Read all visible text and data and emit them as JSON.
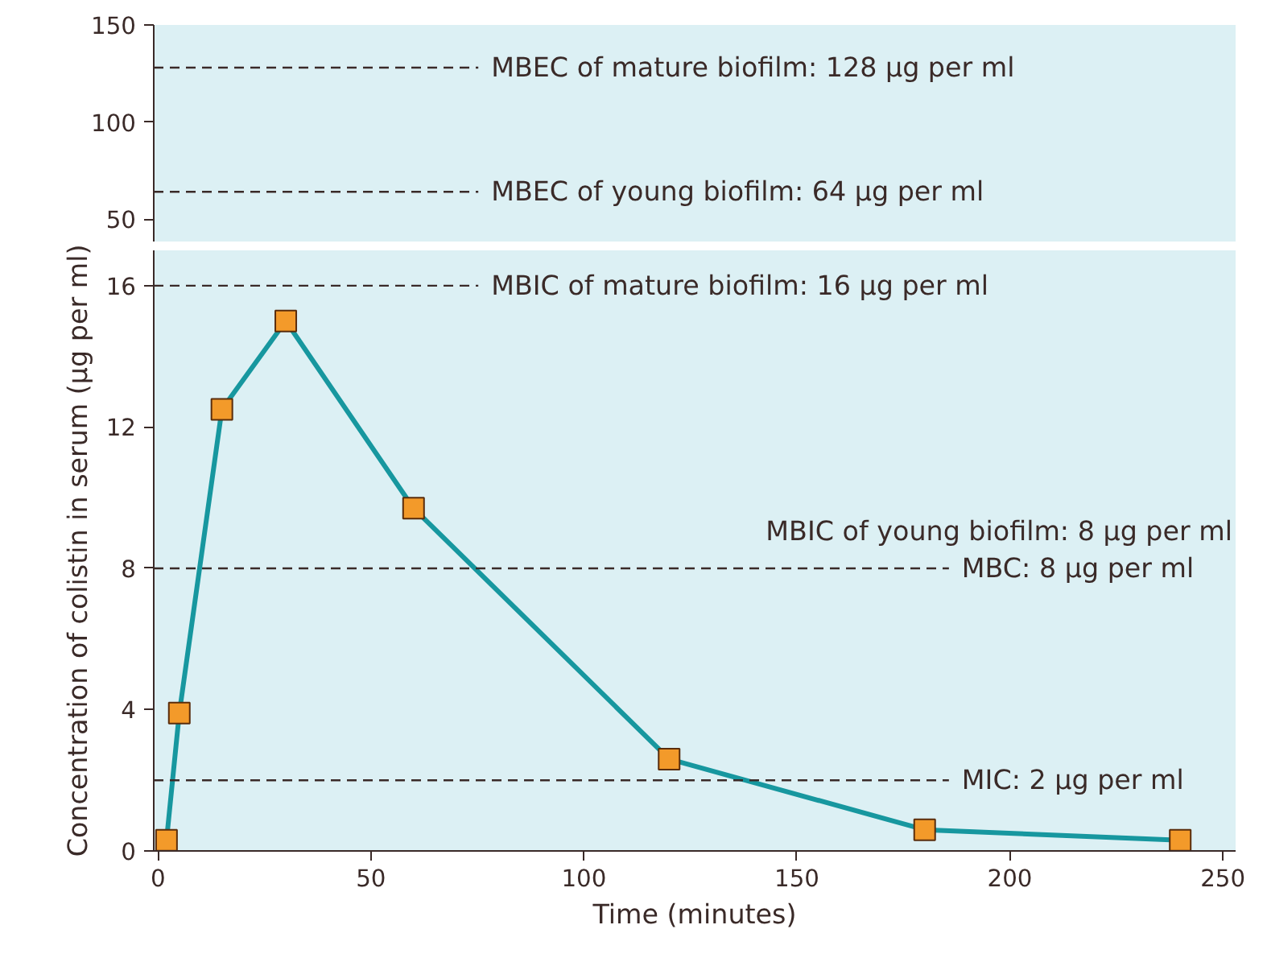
{
  "chart_data": [
    {
      "type": "line",
      "xlim": [
        -1,
        253
      ],
      "ylim": [
        38,
        150
      ],
      "yticks": [
        50,
        100,
        150
      ],
      "tick_labels": "y",
      "grid": false,
      "ref_lines": [
        {
          "axis": "y",
          "value": 128,
          "label": "MBEC of mature biofilm: 128 μg per ml",
          "color": "#3a2a28",
          "line_style": "dashed"
        },
        {
          "axis": "y",
          "value": 64,
          "label": "MBEC of young biofilm: 64 μg per ml",
          "color": "#3a2a28",
          "line_style": "dashed"
        }
      ]
    },
    {
      "type": "line",
      "xlabel": "Time (minutes)",
      "ylabel": "Concentration of colistin in serum (μg per ml)",
      "xlim": [
        -1,
        253
      ],
      "ylim": [
        0,
        17
      ],
      "xticks": [
        0,
        50,
        100,
        150,
        200,
        250
      ],
      "yticks": [
        0,
        4,
        8,
        12,
        16
      ],
      "grid": false,
      "marker": "square",
      "line_style": "solid",
      "x": [
        2,
        5,
        15,
        30,
        60,
        120,
        180,
        240
      ],
      "series": [
        {
          "color": "#17979f",
          "values": [
            0.3,
            3.9,
            12.5,
            15,
            9.7,
            2.6,
            0.6,
            0.3
          ]
        }
      ],
      "annotations": [
        "MBIC of young biofilm: 8 μg per ml"
      ],
      "ref_lines": [
        {
          "axis": "y",
          "value": 16,
          "label": "MBIC of mature biofilm: 16 μg per ml",
          "color": "#3a2a28",
          "line_style": "dashed"
        },
        {
          "axis": "y",
          "value": 8,
          "label": "MBC: 8 μg per ml",
          "color": "#3a2a28",
          "line_style": "dashed"
        },
        {
          "axis": "y",
          "value": 2,
          "label": "MIC: 2 μg per ml",
          "color": "#3a2a28",
          "line_style": "dashed"
        }
      ]
    }
  ]
}
